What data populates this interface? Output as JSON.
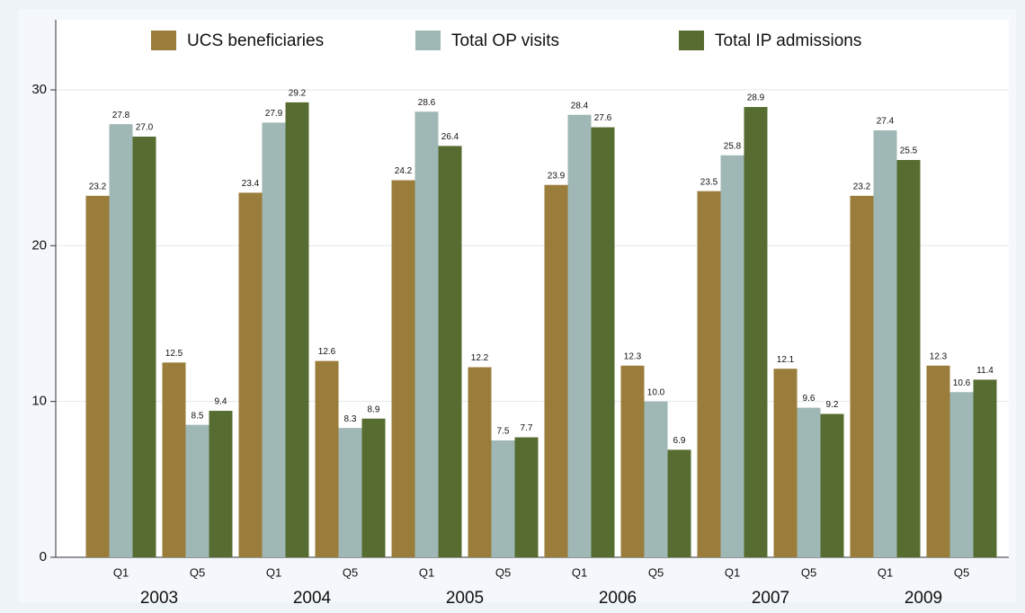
{
  "chart_data": {
    "type": "bar",
    "categories": [
      "Q1",
      "Q5",
      "Q1",
      "Q5",
      "Q1",
      "Q5",
      "Q1",
      "Q5",
      "Q1",
      "Q5",
      "Q1",
      "Q5"
    ],
    "groups": [
      "2003",
      "2004",
      "2005",
      "2006",
      "2007",
      "2009"
    ],
    "series": [
      {
        "name": "UCS beneficiaries",
        "color": "#9a7c3b",
        "values": [
          23.2,
          12.5,
          23.4,
          12.6,
          24.2,
          12.2,
          23.9,
          12.3,
          23.5,
          12.1,
          23.2,
          12.3
        ],
        "value_labels": [
          "23.2",
          "12.5",
          "23.4",
          "12.6",
          "24.2",
          "12.2",
          "23.9",
          "12.3",
          "23.5",
          "12.1",
          "23.2",
          "12.3"
        ]
      },
      {
        "name": "Total OP visits",
        "color": "#9fb8b5",
        "values": [
          27.8,
          8.5,
          27.9,
          8.3,
          28.6,
          7.5,
          28.4,
          10.0,
          25.8,
          9.6,
          27.4,
          10.6
        ],
        "value_labels": [
          "27.8",
          "8.5",
          "27.9",
          "8.3",
          "28.6",
          "7.5",
          "28.4",
          "10.0",
          "25.8",
          "9.6",
          "27.4",
          "10.6"
        ]
      },
      {
        "name": "Total IP admissions",
        "color": "#566c30",
        "values": [
          27.0,
          9.4,
          29.2,
          8.9,
          26.4,
          7.7,
          27.6,
          6.9,
          28.9,
          9.2,
          25.5,
          11.4
        ],
        "value_labels": [
          "27.0",
          "9.4",
          "29.2",
          "8.9",
          "26.4",
          "7.7",
          "27.6",
          "6.9",
          "28.9",
          "9.2",
          "25.5",
          "11.4"
        ]
      }
    ],
    "ylim": [
      0,
      34.5
    ],
    "yticks": [
      0,
      10,
      20,
      30
    ],
    "grid": true,
    "legend": "top"
  }
}
